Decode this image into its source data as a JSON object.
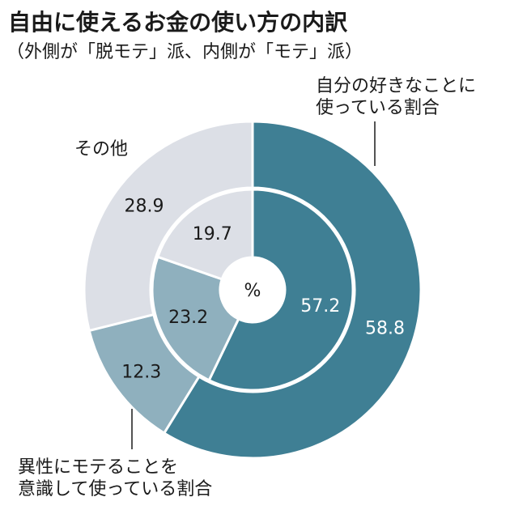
{
  "title": "自由に使えるお金の使い方の内訳",
  "subtitle": "（外側が「脱モテ」派、内側が「モテ」派）",
  "center_label": "%",
  "category_labels": {
    "own": [
      "自分の好きなことに",
      "使っている割合"
    ],
    "other": [
      "その他"
    ],
    "attract": [
      "異性にモテることを",
      "意識して使っている割合"
    ]
  },
  "colors": {
    "own": "#3f7f94",
    "attract": "#8fb0be",
    "other": "#dcdfe6"
  },
  "chart_data": {
    "type": "pie",
    "title": "自由に使えるお金の使い方の内訳",
    "subtitle": "（外側が「脱モテ」派、内側が「モテ」派）",
    "categories": [
      "自分の好きなことに使っている割合",
      "異性にモテることを意識して使っている割合",
      "その他"
    ],
    "series": [
      {
        "name": "外側が「脱モテ」派",
        "values": [
          58.8,
          12.3,
          28.9
        ]
      },
      {
        "name": "内側が「モテ」派",
        "values": [
          57.2,
          23.2,
          19.7
        ]
      }
    ],
    "unit": "%"
  }
}
